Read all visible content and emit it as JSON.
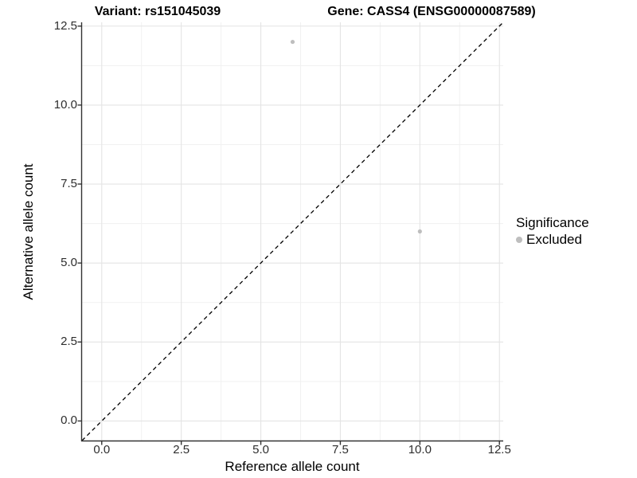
{
  "chart_data": {
    "type": "scatter",
    "title_variant": "Variant: rs151045039",
    "title_gene": "Gene: CASS4 (ENSG00000087589)",
    "xlabel": "Reference allele count",
    "ylabel": "Alternative allele count",
    "xlim": [
      -0.62,
      12.62
    ],
    "ylim": [
      -0.62,
      12.62
    ],
    "xticks": {
      "values": [
        0,
        2.5,
        5,
        7.5,
        10,
        12.5
      ],
      "labels": [
        "0.0",
        "2.5",
        "5.0",
        "7.5",
        "10.0",
        "12.5"
      ]
    },
    "yticks": {
      "values": [
        0,
        2.5,
        5,
        7.5,
        10,
        12.5
      ],
      "labels": [
        "0.0",
        "2.5",
        "5.0",
        "7.5",
        "10.0",
        "12.5"
      ]
    },
    "minor_tick_values": [
      1.25,
      3.75,
      6.25,
      8.75,
      11.25
    ],
    "grid": "on",
    "colors": {
      "grid_major": "#e4e4e4",
      "grid_minor": "#f1f1f1",
      "axis": "#333333",
      "point": "#bebebe",
      "identity_line": "#000000"
    },
    "identity_line": {
      "style": "dashed",
      "color": "#000000",
      "from": [
        -0.62,
        -0.62
      ],
      "to": [
        12.62,
        12.62
      ]
    },
    "series": [
      {
        "name": "Excluded",
        "color": "#bebebe",
        "points": [
          {
            "x": 6,
            "y": 12
          },
          {
            "x": 10,
            "y": 6
          }
        ]
      }
    ],
    "legend": {
      "title": "Significance",
      "position": "right",
      "items": [
        {
          "label": "Excluded",
          "color": "#bebebe",
          "marker": "circle"
        }
      ]
    }
  }
}
